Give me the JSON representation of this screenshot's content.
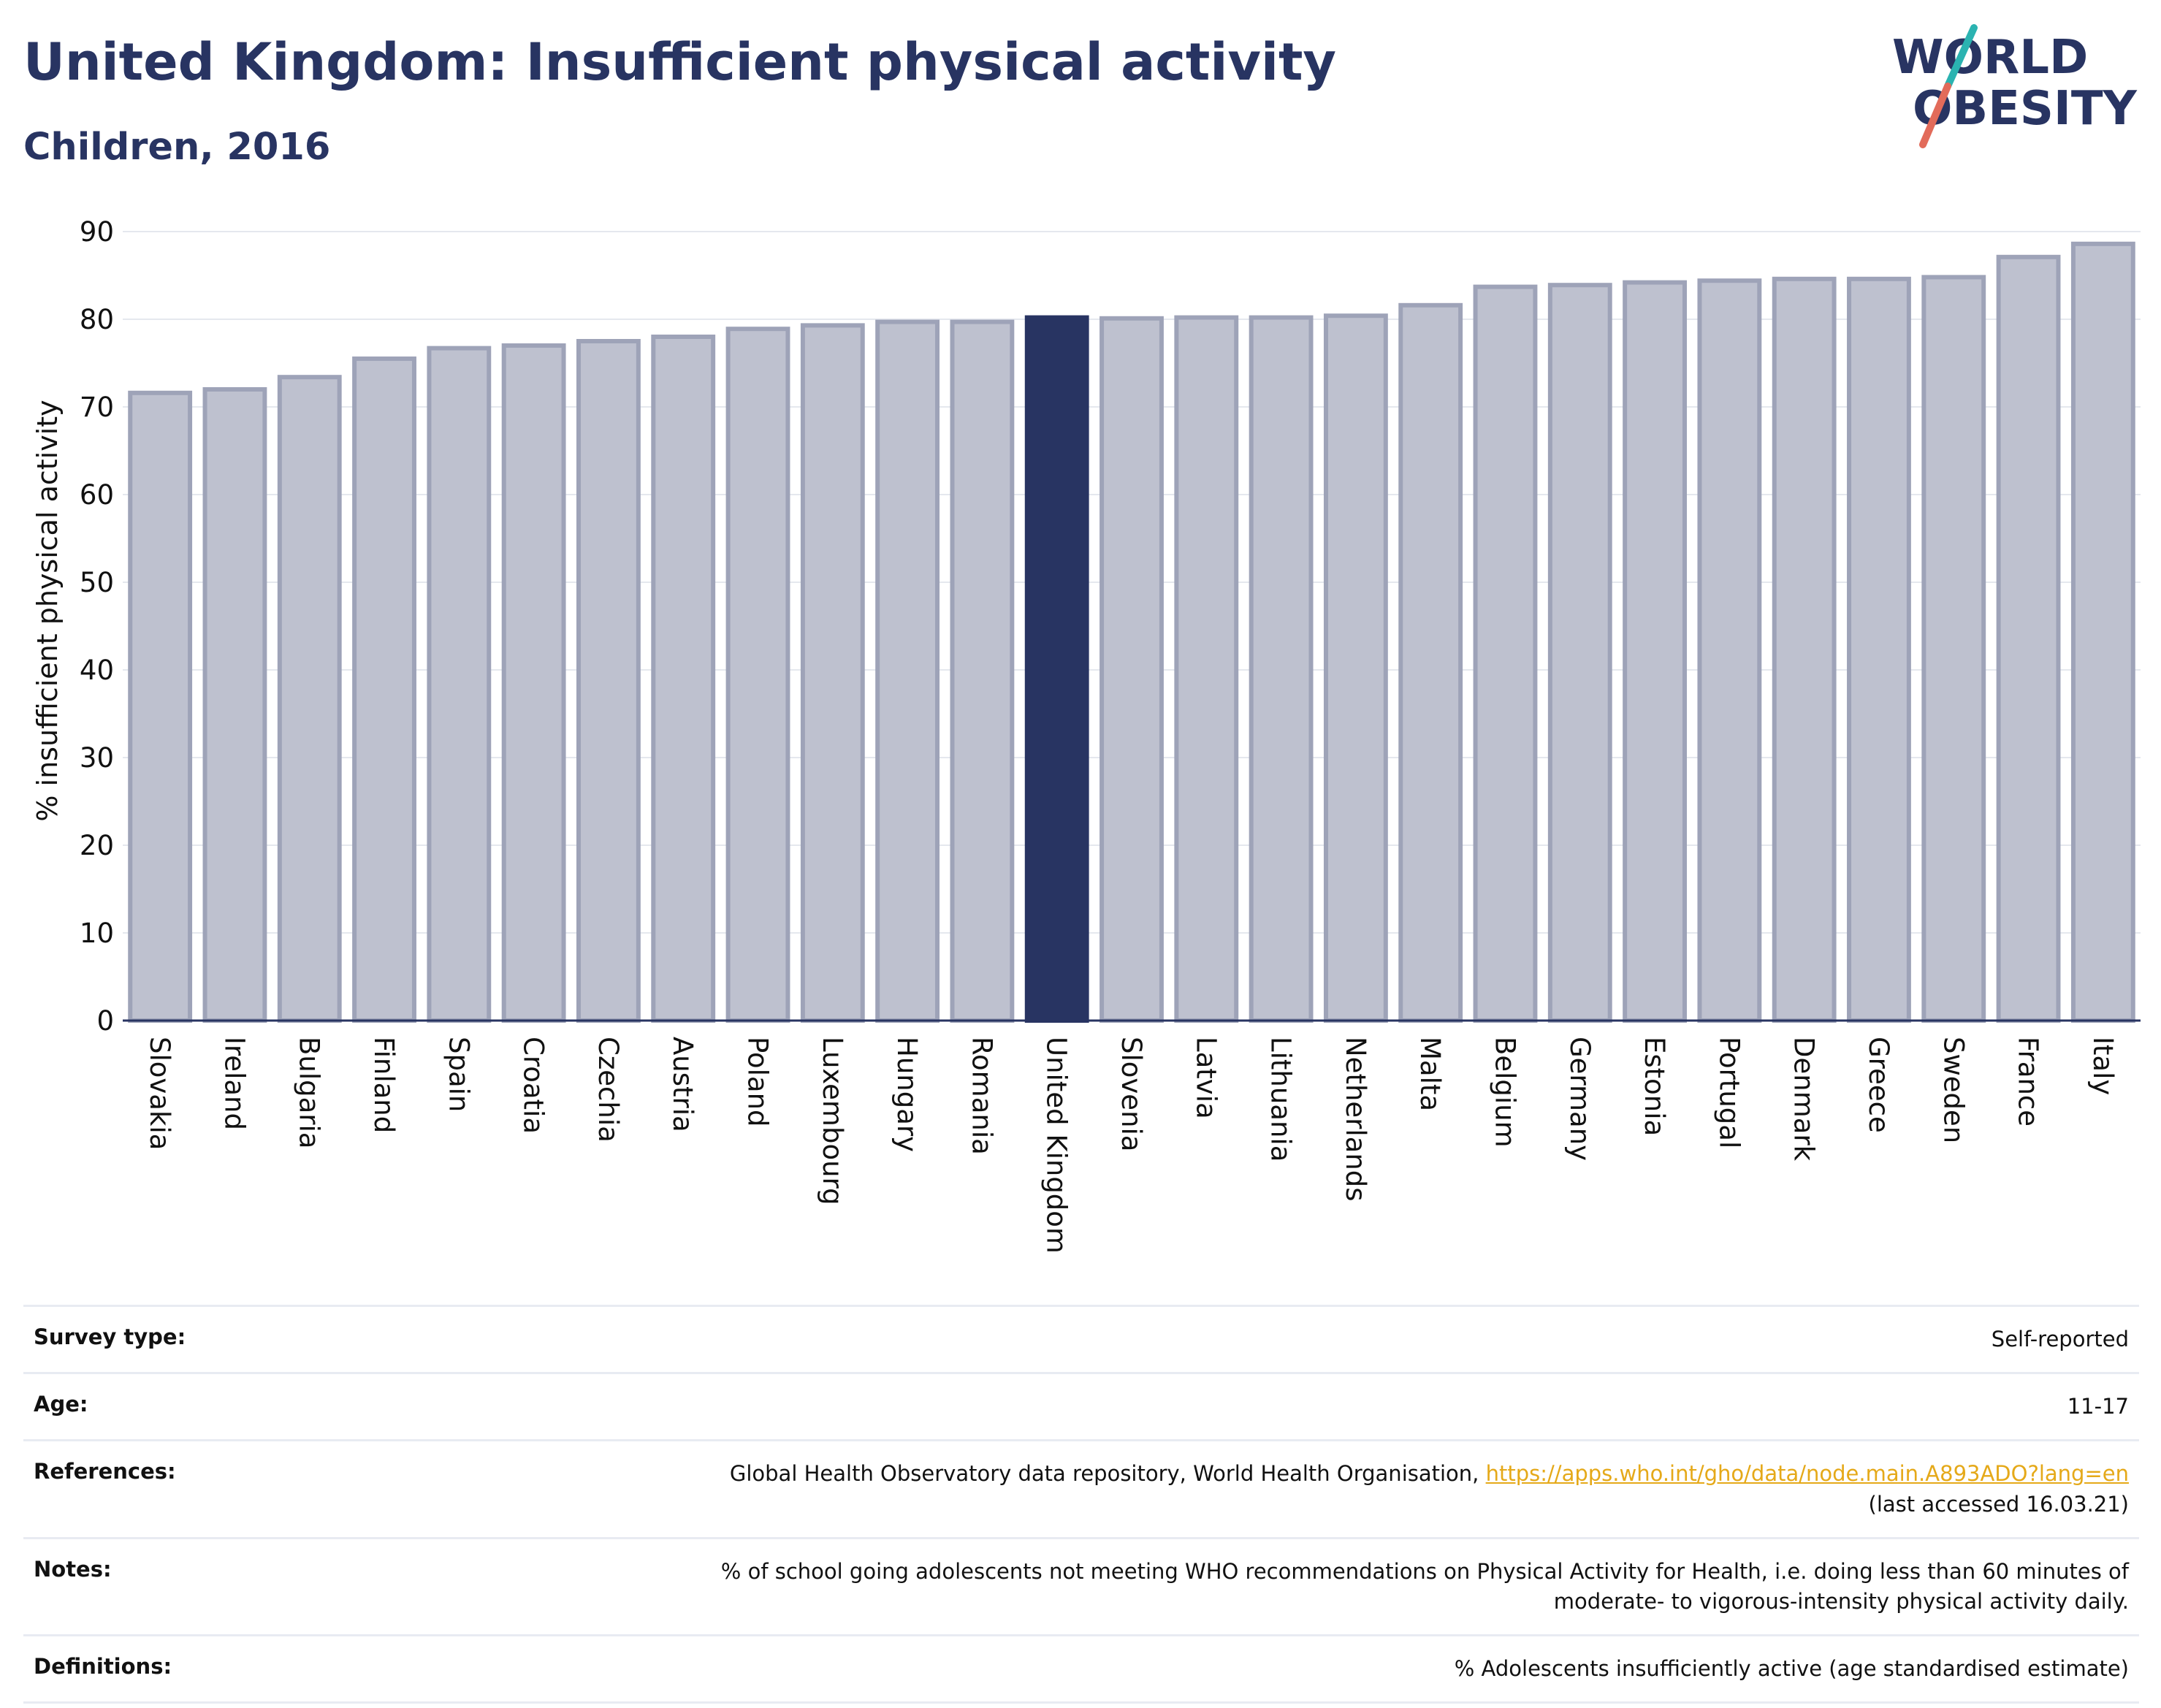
{
  "header": {
    "title": "United Kingdom: Insufficient physical activity",
    "subtitle": "Children, 2016",
    "logo": {
      "line1": "WORLD",
      "line2": "OBESITY",
      "colors": {
        "text": "#283462",
        "slash_top": "#2bb3b1",
        "slash_bottom": "#e26b5a"
      }
    }
  },
  "chart_data": {
    "type": "bar",
    "title": "United Kingdom: Insufficient physical activity",
    "subtitle": "Children, 2016",
    "ylabel": "% insufficient physical activity",
    "xlabel": "",
    "ylim": [
      0,
      90
    ],
    "yticks": [
      0,
      10,
      20,
      30,
      40,
      50,
      60,
      70,
      80,
      90
    ],
    "grid": true,
    "highlight": "United Kingdom",
    "colors": {
      "highlight": "#283462",
      "default": "#bec1cf",
      "default_edge": "#9ea3b8",
      "grid": "#e5e8ee",
      "axis": "#283462"
    },
    "categories": [
      "Slovakia",
      "Ireland",
      "Bulgaria",
      "Finland",
      "Spain",
      "Croatia",
      "Czechia",
      "Austria",
      "Poland",
      "Luxembourg",
      "Hungary",
      "Romania",
      "United Kingdom",
      "Slovenia",
      "Latvia",
      "Lithuania",
      "Netherlands",
      "Malta",
      "Belgium",
      "Germany",
      "Estonia",
      "Portugal",
      "Denmark",
      "Greece",
      "Sweden",
      "France",
      "Italy"
    ],
    "values": [
      71.6,
      72.0,
      73.4,
      75.5,
      76.7,
      77.0,
      77.5,
      78.0,
      78.9,
      79.3,
      79.7,
      79.7,
      80.2,
      80.1,
      80.2,
      80.2,
      80.4,
      81.6,
      83.7,
      83.9,
      84.2,
      84.4,
      84.6,
      84.6,
      84.8,
      87.1,
      88.6
    ]
  },
  "notes": [
    {
      "label": "Survey type:",
      "value": "Self-reported"
    },
    {
      "label": "Age:",
      "value": "11-17"
    },
    {
      "label": "References:",
      "value_prefix": "Global Health Observatory data repository, World Health Organisation,",
      "link": "https://apps.who.int/gho/data/node.main.A893ADO?lang=en",
      "value_suffix": "(last accessed 16.03.21)"
    },
    {
      "label": "Notes:",
      "value_line1": "% of school going adolescents not meeting WHO recommendations on Physical Activity for Health, i.e. doing less than 60 minutes of",
      "value_line2": "moderate- to vigorous-intensity physical activity daily."
    },
    {
      "label": "Definitions:",
      "value": "% Adolescents insufficiently active (age standardised estimate)"
    }
  ]
}
